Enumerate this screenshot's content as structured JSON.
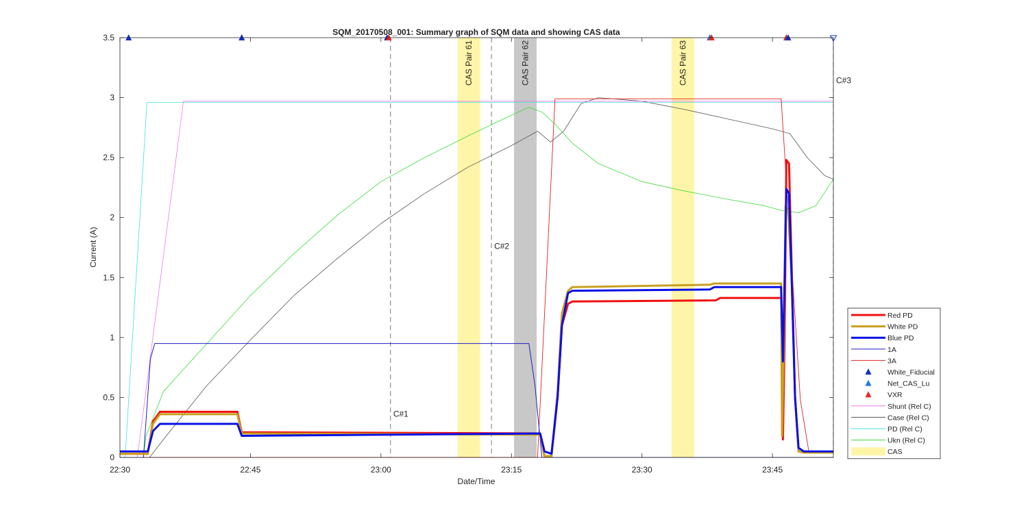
{
  "chart_data": {
    "type": "line",
    "title": "SQM_20170508_001: Summary graph of SQM data and showing CAS data",
    "xlabel": "Date/Time",
    "ylabel": "Current (A)",
    "xlim": [
      "22:30",
      "23:52"
    ],
    "ylim": [
      0,
      3.5
    ],
    "grid": false,
    "legend_position": "lower-right outside",
    "x_tick_labels": [
      "22:30",
      "22:45",
      "23:00",
      "23:15",
      "23:30",
      "23:45"
    ],
    "x_tick_values_min": [
      0,
      15,
      30,
      45,
      60,
      75
    ],
    "y_tick_labels": [
      "0",
      "0.5",
      "1",
      "1.5",
      "2",
      "2.5",
      "3",
      "3.5"
    ],
    "y_tick_values": [
      0,
      0.5,
      1,
      1.5,
      2,
      2.5,
      3,
      3.5
    ],
    "cas_bands": [
      {
        "label": "CAS Pair 61",
        "start_min": 38.8,
        "end_min": 41.4,
        "color": "#fff5a8"
      },
      {
        "label": "CAS Pair 62",
        "start_min": 45.3,
        "end_min": 47.9,
        "color": "#c8c8c8"
      },
      {
        "label": "CAS Pair 63",
        "start_min": 63.4,
        "end_min": 66.0,
        "color": "#fff5a8"
      }
    ],
    "cursors": [
      {
        "label": "C#1",
        "time_min": 31.1,
        "label_y": 0.34
      },
      {
        "label": "C#2",
        "time_min": 42.7,
        "label_y": 1.74
      },
      {
        "label": "C#3",
        "time_min": 82.0,
        "label_y": 3.12
      }
    ],
    "markers": [
      {
        "series": "White_Fiducial",
        "time_min": 1.0,
        "y": 3.5,
        "color": "#1030c8"
      },
      {
        "series": "VXR",
        "time_min": 14.0,
        "y": 3.5,
        "color": "#e8281e"
      },
      {
        "series": "White_Fiducial",
        "time_min": 14.0,
        "y": 3.5,
        "color": "#1030c8"
      },
      {
        "series": "White_Fiducial",
        "time_min": 30.7,
        "y": 3.5,
        "color": "#1030c8"
      },
      {
        "series": "VXR",
        "time_min": 30.9,
        "y": 3.5,
        "color": "#e8281e"
      },
      {
        "series": "Net_CAS_Lu",
        "time_min": 67.8,
        "y": 3.5,
        "color": "#1e78e6"
      },
      {
        "series": "VXR",
        "time_min": 68.0,
        "y": 3.5,
        "color": "#e8281e"
      },
      {
        "series": "VXR",
        "time_min": 76.6,
        "y": 3.5,
        "color": "#e8281e"
      },
      {
        "series": "White_Fiducial",
        "time_min": 76.8,
        "y": 3.5,
        "color": "#1030c8"
      }
    ],
    "series": [
      {
        "name": "Ukn (Rel C)",
        "color": "#3cdc3c",
        "width": 0.8,
        "x": [
          0,
          2.7,
          3.0,
          5,
          10,
          15,
          20,
          25,
          30,
          35,
          40,
          44,
          47,
          48.5,
          50,
          52,
          55,
          60,
          65,
          70,
          74,
          76,
          78,
          80,
          82
        ],
        "y": [
          0,
          0,
          0.18,
          0.55,
          0.95,
          1.35,
          1.7,
          2.02,
          2.3,
          2.5,
          2.68,
          2.82,
          2.92,
          2.88,
          2.78,
          2.62,
          2.45,
          2.3,
          2.22,
          2.15,
          2.1,
          2.06,
          2.04,
          2.1,
          2.32
        ]
      },
      {
        "name": "Case (Rel C)",
        "color": "#555555",
        "width": 0.8,
        "x": [
          0,
          3.4,
          5,
          10,
          15,
          20,
          25,
          30,
          35,
          40,
          45,
          48,
          49.5,
          51,
          53,
          55,
          60,
          65,
          70,
          75,
          77,
          79,
          81,
          82
        ],
        "y": [
          0,
          0,
          0.15,
          0.6,
          0.98,
          1.35,
          1.66,
          1.95,
          2.2,
          2.42,
          2.6,
          2.72,
          2.63,
          2.72,
          2.95,
          3.0,
          2.97,
          2.9,
          2.82,
          2.74,
          2.7,
          2.5,
          2.35,
          2.32
        ]
      },
      {
        "name": "Shunt (Rel C)",
        "color": "#e87ae8",
        "width": 0.8,
        "x": [
          0,
          2.0,
          7.3,
          82
        ],
        "y": [
          0,
          0,
          2.97,
          2.97
        ]
      },
      {
        "name": "PD (Rel C)",
        "color": "#40e0e0",
        "width": 0.8,
        "x": [
          0,
          0.6,
          3.1,
          82
        ],
        "y": [
          0,
          0,
          2.96,
          2.96
        ]
      },
      {
        "name": "3A",
        "color": "#e02020",
        "width": 0.9,
        "x": [
          0,
          48.0,
          50.0,
          76.0,
          78.2,
          79.2,
          82
        ],
        "y": [
          0,
          0,
          2.99,
          2.99,
          0.48,
          0.04,
          0.04
        ]
      },
      {
        "name": "1A",
        "color": "#1e1ec8",
        "width": 1.0,
        "x": [
          0,
          2.7,
          3.5,
          4.0,
          47.0,
          47.7,
          48.5,
          82
        ],
        "y": [
          0,
          0,
          0.82,
          0.95,
          0.95,
          0.6,
          0.0,
          0.0
        ]
      },
      {
        "name": "Red PD",
        "color": "#f01010",
        "width": 3.0,
        "x": [
          0,
          3.2,
          3.8,
          4.6,
          13.5,
          14.0,
          48.3,
          48.8,
          49.6,
          50.3,
          50.8,
          51.5,
          52,
          68.5,
          69,
          76.0,
          76.2,
          76.4,
          76.6,
          76.9,
          77.2,
          77.6,
          78.0,
          78.6,
          82
        ],
        "y": [
          0.03,
          0.03,
          0.3,
          0.38,
          0.38,
          0.21,
          0.2,
          0.01,
          0.01,
          0.5,
          1.1,
          1.28,
          1.3,
          1.31,
          1.33,
          1.33,
          0.15,
          1.0,
          2.48,
          2.45,
          1.6,
          0.5,
          0.05,
          0.04,
          0.04
        ]
      },
      {
        "name": "White PD",
        "color": "#c8a020",
        "width": 3.0,
        "x": [
          0,
          3.2,
          3.8,
          4.6,
          13.5,
          14.0,
          48.3,
          48.8,
          49.6,
          50.3,
          50.8,
          51.5,
          52,
          67.8,
          68.3,
          76.0,
          76.1,
          76.3,
          76.5,
          76.8,
          77.2,
          77.6,
          78.0,
          78.6,
          82
        ],
        "y": [
          0.03,
          0.03,
          0.28,
          0.36,
          0.36,
          0.2,
          0.19,
          0.01,
          0.01,
          0.55,
          1.2,
          1.39,
          1.42,
          1.44,
          1.45,
          1.45,
          0.18,
          0.9,
          2.1,
          2.05,
          1.5,
          0.5,
          0.05,
          0.04,
          0.04
        ]
      },
      {
        "name": "Blue PD",
        "color": "#0a10e6",
        "width": 3.0,
        "x": [
          0,
          3.2,
          3.8,
          4.6,
          13.5,
          14.0,
          48.3,
          48.8,
          49.6,
          50.3,
          50.8,
          51.5,
          52,
          67.8,
          68.3,
          76.0,
          76.2,
          76.4,
          76.6,
          76.9,
          77.2,
          77.6,
          78.0,
          78.6,
          82
        ],
        "y": [
          0.05,
          0.05,
          0.22,
          0.28,
          0.28,
          0.18,
          0.2,
          0.05,
          0.03,
          0.5,
          1.1,
          1.37,
          1.39,
          1.4,
          1.42,
          1.42,
          0.8,
          1.5,
          2.24,
          2.2,
          1.5,
          0.5,
          0.08,
          0.05,
          0.05
        ]
      }
    ],
    "legend": [
      {
        "label": "Red PD",
        "kind": "line",
        "color": "#f01010",
        "width": 3
      },
      {
        "label": "White PD",
        "kind": "line",
        "color": "#c8a020",
        "width": 3
      },
      {
        "label": "Blue PD",
        "kind": "line",
        "color": "#0a10e6",
        "width": 3
      },
      {
        "label": "1A",
        "kind": "line",
        "color": "#1e1ec8",
        "width": 1
      },
      {
        "label": "3A",
        "kind": "line",
        "color": "#e02020",
        "width": 1
      },
      {
        "label": "White_Fiducial",
        "kind": "marker",
        "color": "#1030c8",
        "width": 1
      },
      {
        "label": "Net_CAS_Lu",
        "kind": "marker",
        "color": "#1e78e6",
        "width": 1
      },
      {
        "label": "VXR",
        "kind": "marker",
        "color": "#e8281e",
        "width": 1
      },
      {
        "label": "Shunt (Rel C)",
        "kind": "line",
        "color": "#e87ae8",
        "width": 1
      },
      {
        "label": "Case (Rel C)",
        "kind": "line",
        "color": "#555555",
        "width": 1
      },
      {
        "label": "PD (Rel C)",
        "kind": "line",
        "color": "#40e0e0",
        "width": 1
      },
      {
        "label": "Ukn (Rel C)",
        "kind": "line",
        "color": "#3cdc3c",
        "width": 1
      },
      {
        "label": "CAS",
        "kind": "patch",
        "color": "#fff5a8",
        "width": 1
      }
    ]
  }
}
